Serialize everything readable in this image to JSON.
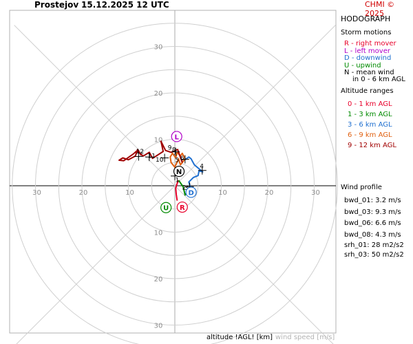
{
  "header": {
    "station": "Prostejov",
    "datetime": "15.12.2025 12 UTC",
    "copyright": "CHMI © 2025"
  },
  "footer": {
    "altitude_label": "altitude !AGL! [km]",
    "speed_label": "wind speed [m/s]"
  },
  "legend": {
    "title": "HODOGRAPH",
    "storm_title": "Storm motions",
    "storm_items": [
      {
        "text": "R - right mover",
        "color": "#e8002a"
      },
      {
        "text": "L - left mover",
        "color": "#b000c8"
      },
      {
        "text": "D - downwind",
        "color": "#2070d0"
      },
      {
        "text": "U - upwind",
        "color": "#008a00"
      },
      {
        "text": "N - mean wind",
        "color": "#000000"
      },
      {
        "text": "in 0 - 6 km AGL",
        "color": "#000000"
      }
    ],
    "altitude_title": "Altitude ranges",
    "altitude_items": [
      {
        "text": "0 - 1 km AGL",
        "color": "#e8002a"
      },
      {
        "text": "1 - 3 km AGL",
        "color": "#008a00"
      },
      {
        "text": "3 - 6 km AGL",
        "color": "#2070d0"
      },
      {
        "text": "6 - 9 km AGL",
        "color": "#e06010"
      },
      {
        "text": "9 - 12 km AGL",
        "color": "#a00000"
      }
    ]
  },
  "wind_profile": {
    "title": "Wind profile",
    "items": [
      "bwd_01: 3.2 m/s",
      "bwd_03: 9.3 m/s",
      "bwd_06: 6.6 m/s",
      "bwd_08: 4.3 m/s"
    ],
    "srh": [
      "srh_01: 28 m2/s2",
      "srh_03: 50 m2/s2"
    ]
  },
  "chart_data": {
    "type": "hodograph",
    "title": "",
    "units": "m/s",
    "rings": [
      5,
      10,
      15,
      20,
      25,
      30,
      35
    ],
    "ring_labels": [
      "10",
      "20",
      "30"
    ],
    "grid": true,
    "segments": [
      {
        "range": "0 - 1 km AGL",
        "color": "#e8002a",
        "points": [
          [
            0.5,
            -3.2
          ],
          [
            0.3,
            -1.8
          ],
          [
            0.2,
            -0.5
          ],
          [
            0.5,
            0.5
          ],
          [
            0.8,
            1.2
          ]
        ]
      },
      {
        "range": "1 - 3 km AGL",
        "color": "#008a00",
        "points": [
          [
            0.8,
            1.2
          ],
          [
            1.8,
            -0.2
          ],
          [
            2.2,
            -2.0
          ],
          [
            2.8,
            -1.2
          ],
          [
            3.5,
            -0.8
          ]
        ]
      },
      {
        "range": "3 - 6 km AGL",
        "color": "#2070d0",
        "points": [
          [
            3.5,
            -0.8
          ],
          [
            3.0,
            0.8
          ],
          [
            4.0,
            1.8
          ],
          [
            5.0,
            2.2
          ],
          [
            5.2,
            3.2
          ],
          [
            6.0,
            3.0
          ],
          [
            4.2,
            4.5
          ],
          [
            3.5,
            5.8
          ],
          [
            3.0,
            6.2
          ],
          [
            2.0,
            5.5
          ]
        ]
      },
      {
        "range": "6 - 9 km AGL",
        "color": "#e06010",
        "points": [
          [
            2.0,
            5.5
          ],
          [
            1.2,
            4.5
          ],
          [
            0.8,
            5.8
          ],
          [
            0.0,
            4.0
          ],
          [
            -0.8,
            5.0
          ],
          [
            -1.0,
            6.2
          ],
          [
            -0.5,
            7.0
          ],
          [
            0.2,
            6.0
          ],
          [
            0.5,
            7.2
          ],
          [
            1.2,
            6.4
          ],
          [
            1.6,
            7.0
          ],
          [
            2.2,
            5.8
          ],
          [
            1.6,
            5.0
          ]
        ]
      },
      {
        "range": "9 - 12 km AGL",
        "color": "#a00000",
        "points": [
          [
            1.6,
            5.0
          ],
          [
            0.6,
            7.8
          ],
          [
            -0.8,
            7.2
          ],
          [
            -2.0,
            7.6
          ],
          [
            -3.0,
            9.6
          ],
          [
            -2.5,
            7.4
          ],
          [
            -4.8,
            5.9
          ],
          [
            -5.5,
            7.2
          ],
          [
            -6.8,
            6.4
          ],
          [
            -8.2,
            7.5
          ],
          [
            -9.0,
            6.8
          ],
          [
            -11.0,
            5.4
          ],
          [
            -12.0,
            5.5
          ],
          [
            -11.2,
            6.0
          ],
          [
            -10.0,
            5.6
          ],
          [
            -8.5,
            6.4
          ],
          [
            -8.0,
            7.8
          ],
          [
            -7.2,
            6.5
          ]
        ]
      }
    ],
    "height_marks": [
      {
        "label": "1",
        "x": 0.5,
        "y": 0.8
      },
      {
        "label": "2",
        "x": 2.0,
        "y": -0.8
      },
      {
        "label": "3",
        "x": 2.5,
        "y": -0.9
      },
      {
        "label": "4",
        "x": 5.8,
        "y": 3.8
      },
      {
        "label": "5",
        "x": 0.5,
        "y": 5.1
      },
      {
        "label": "6",
        "x": 1.6,
        "y": 5.5
      },
      {
        "label": "7",
        "x": 0.0,
        "y": 6.6
      },
      {
        "label": "8",
        "x": -0.2,
        "y": 7.3
      },
      {
        "label": "9",
        "x": -1.1,
        "y": 7.8
      },
      {
        "label": "10",
        "x": -3.3,
        "y": 5.2
      },
      {
        "label": "11",
        "x": -5.0,
        "y": 6.0
      },
      {
        "label": "12",
        "x": -7.5,
        "y": 7.0
      }
    ],
    "plus_marks": [
      [
        0,
        2.1
      ],
      [
        3.2,
        -0.2
      ],
      [
        5.9,
        3.3
      ],
      [
        2.2,
        5.7
      ],
      [
        0.2,
        7.3
      ],
      [
        -2.2,
        6.0
      ],
      [
        -5.5,
        6.2
      ],
      [
        -7.8,
        6.3
      ]
    ],
    "storm_motions": [
      {
        "label": "R",
        "x": 1.6,
        "y": -4.6,
        "color": "#e8002a"
      },
      {
        "label": "L",
        "x": 0.4,
        "y": 10.6,
        "color": "#b000c8"
      },
      {
        "label": "D",
        "x": 3.5,
        "y": -1.4,
        "color": "#2070d0"
      },
      {
        "label": "U",
        "x": -1.9,
        "y": -4.7,
        "color": "#008a00"
      },
      {
        "label": "N",
        "x": 0.9,
        "y": 3.1,
        "color": "#000000"
      }
    ]
  }
}
